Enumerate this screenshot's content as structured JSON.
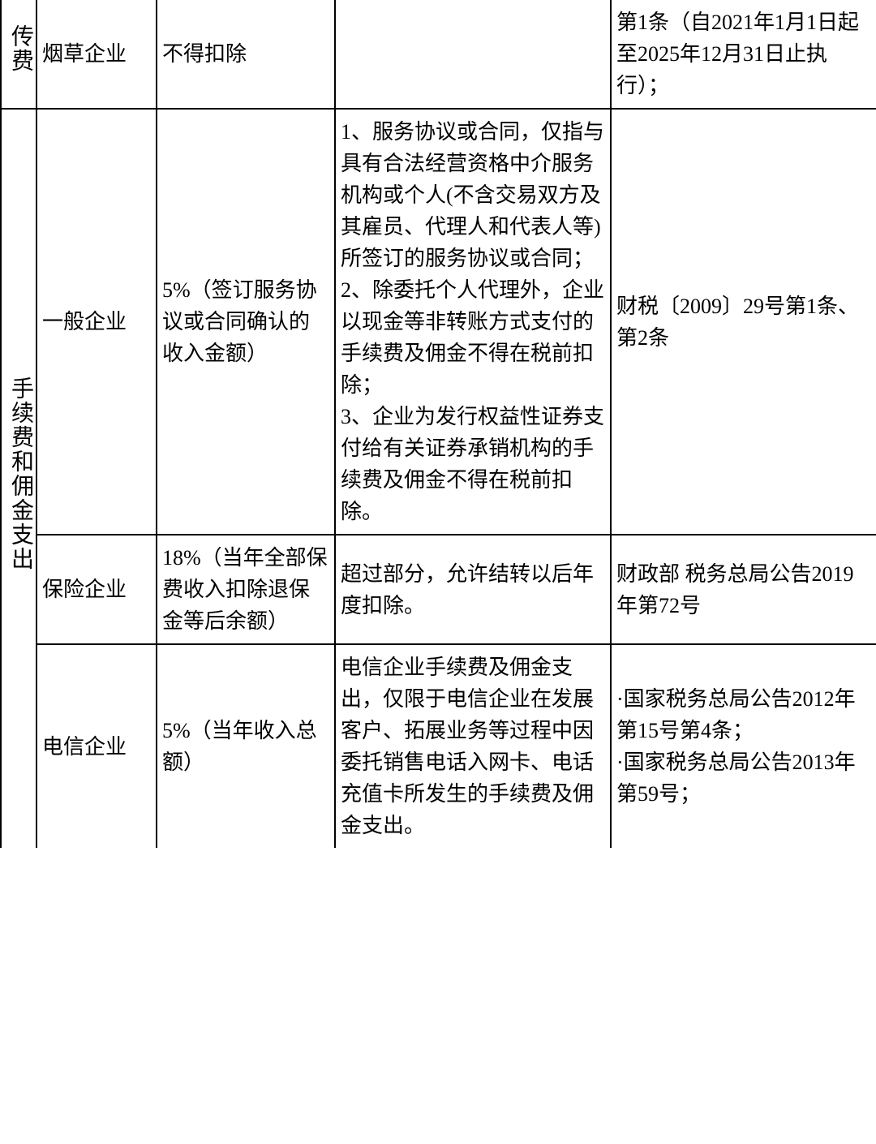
{
  "table": {
    "border_color": "#000000",
    "background_color": "#ffffff",
    "text_color": "#000000",
    "font_size_body": 26,
    "font_size_header": 28,
    "sections": [
      {
        "header": "传费",
        "rows": [
          {
            "entity": "烟草企业",
            "limit": "不得扣除",
            "note": "",
            "basis": "第1条（自2021年1月1日起至2025年12月31日止执行）；"
          }
        ]
      },
      {
        "header": "手续费和佣金支出",
        "rows": [
          {
            "entity": "一般企业",
            "limit": "5%（签订服务协议或合同确认的收入金额）",
            "note": "1、服务协议或合同，仅指与具有合法经营资格中介服务机构或个人(不含交易双方及其雇员、代理人和代表人等)所签订的服务协议或合同；\n2、除委托个人代理外，企业以现金等非转账方式支付的手续费及佣金不得在税前扣除；\n3、企业为发行权益性证券支付给有关证券承销机构的手续费及佣金不得在税前扣除。",
            "basis": "财税〔2009〕29号第1条、第2条"
          },
          {
            "entity": "保险企业",
            "limit": "18%（当年全部保费收入扣除退保金等后余额）",
            "note": "超过部分，允许结转以后年度扣除。",
            "basis": "财政部 税务总局公告2019年第72号"
          },
          {
            "entity": "电信企业",
            "limit": "5%（当年收入总额）",
            "note": "电信企业手续费及佣金支出，仅限于电信企业在发展客户、拓展业务等过程中因委托销售电话入网卡、电话充值卡所发生的手续费及佣金支出。",
            "basis": "·国家税务总局公告2012年第15号第4条；\n·国家税务总局公告2013年第59号；"
          }
        ]
      }
    ]
  }
}
